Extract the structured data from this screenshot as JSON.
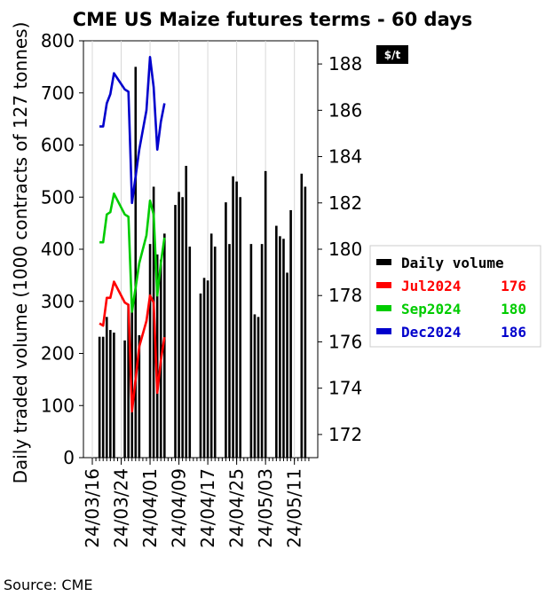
{
  "chart_data": {
    "type": "bar",
    "title": "CME US Maize futures terms - 60 days",
    "ylabel": "Daily traded volume (1000 contracts of 127 tonnes)",
    "y2label": "$/t",
    "source": "Source: CME",
    "ylim": [
      0,
      800
    ],
    "y2lim": [
      171,
      189
    ],
    "yticks": [
      "0",
      "100",
      "200",
      "300",
      "400",
      "500",
      "600",
      "700",
      "800"
    ],
    "y2ticks": [
      "172",
      "174",
      "176",
      "178",
      "180",
      "182",
      "184",
      "186",
      "188"
    ],
    "xticks": [
      {
        "label": "24/03/16",
        "day": 0
      },
      {
        "label": "24/03/24",
        "day": 8
      },
      {
        "label": "24/04/01",
        "day": 16
      },
      {
        "label": "24/04/09",
        "day": 24
      },
      {
        "label": "24/04/17",
        "day": 32
      },
      {
        "label": "24/04/25",
        "day": 40
      },
      {
        "label": "24/05/03",
        "day": 48
      },
      {
        "label": "24/05/11",
        "day": 56
      }
    ],
    "xlim": [
      0,
      61
    ],
    "volume": {
      "name": "Daily volume",
      "color": "#000000",
      "days": [
        2,
        3,
        4,
        5,
        6,
        9,
        10,
        11,
        12,
        13,
        16,
        17,
        18,
        19,
        20,
        23,
        24,
        25,
        26,
        27,
        30,
        31,
        32,
        33,
        34,
        37,
        38,
        39,
        40,
        41,
        44,
        45,
        46,
        47,
        48,
        51,
        52,
        53,
        54,
        55,
        58,
        59
      ],
      "values": [
        232,
        232,
        270,
        245,
        240,
        225,
        295,
        280,
        750,
        235,
        410,
        520,
        390,
        380,
        430,
        485,
        510,
        500,
        560,
        405,
        315,
        345,
        340,
        430,
        405,
        490,
        410,
        540,
        530,
        500,
        410,
        275,
        270,
        410,
        550,
        445,
        425,
        420,
        355,
        475,
        545,
        520
      ]
    },
    "series": [
      {
        "name": "Jul2024",
        "last": "176",
        "color": "#ff0000",
        "days": [
          2,
          3,
          4,
          5,
          6,
          9,
          10,
          11,
          13,
          15,
          16,
          17,
          18,
          19,
          20
        ],
        "values": [
          176.8,
          176.7,
          177.9,
          177.9,
          178.6,
          177.7,
          177.6,
          173.0,
          175.8,
          176.9,
          178.0,
          177.7,
          173.8,
          175.2,
          176.2
        ]
      },
      {
        "name": "Sep2024",
        "last": "180",
        "color": "#00cc00",
        "days": [
          2,
          3,
          4,
          5,
          6,
          9,
          10,
          11,
          13,
          15,
          16,
          17,
          18,
          19,
          20
        ],
        "values": [
          180.3,
          180.3,
          181.5,
          181.6,
          182.4,
          181.5,
          181.4,
          177.3,
          179.4,
          180.6,
          182.1,
          181.5,
          178.0,
          179.4,
          180.5
        ]
      },
      {
        "name": "Dec2024",
        "last": "186",
        "color": "#0000cc",
        "days": [
          2,
          3,
          4,
          5,
          6,
          9,
          10,
          11,
          13,
          15,
          16,
          17,
          18,
          19,
          20
        ],
        "values": [
          185.3,
          185.3,
          186.3,
          186.7,
          187.6,
          186.9,
          186.8,
          182.0,
          184.3,
          186.0,
          188.3,
          187.0,
          184.3,
          185.5,
          186.3
        ]
      }
    ]
  }
}
